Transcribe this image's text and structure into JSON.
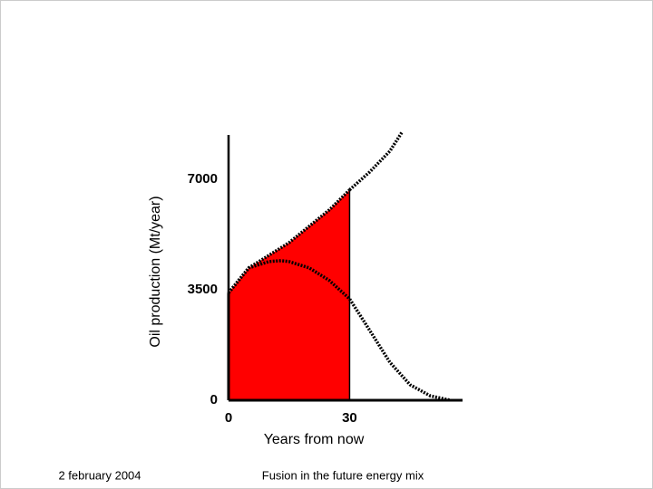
{
  "chart_data": {
    "type": "line",
    "x_label": "Years from now",
    "y_label": "Oil production (Mt/year)",
    "xlim": [
      0,
      58
    ],
    "ylim": [
      0,
      8400
    ],
    "xticks": [
      0,
      30
    ],
    "yticks": [
      0,
      3500,
      7000
    ],
    "series": [
      {
        "color": "#000000",
        "fill": "#ff0000",
        "x": [
          0,
          5,
          10,
          15,
          20,
          25,
          30
        ],
        "values": [
          3400,
          4190,
          4590,
          4990,
          5510,
          6030,
          6660
        ]
      },
      {
        "color": "#000000",
        "x": [
          30,
          35,
          40,
          43
        ],
        "values": [
          6660,
          7230,
          7890,
          8490
        ]
      },
      {
        "color": "#000000",
        "x": [
          0,
          5,
          10,
          13,
          15,
          20,
          25,
          30,
          35,
          40,
          45,
          50,
          55
        ],
        "values": [
          3400,
          4190,
          4390,
          4420,
          4390,
          4190,
          3790,
          3210,
          2210,
          1200,
          490,
          140,
          0
        ]
      }
    ]
  },
  "footer": {
    "date": "2 february 2004",
    "title": "Fusion in the future energy mix"
  }
}
